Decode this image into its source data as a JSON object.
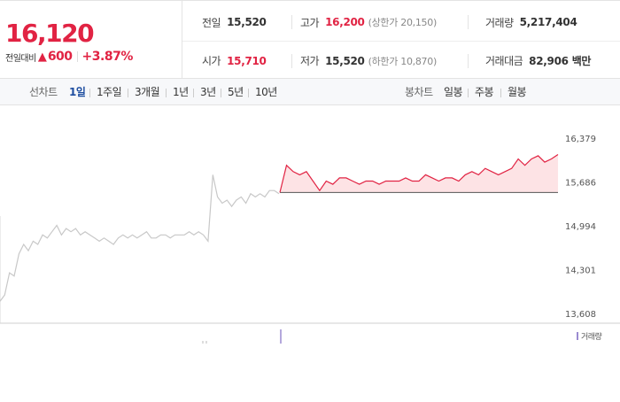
{
  "quote": {
    "price": "16,120",
    "change_label": "전일대비",
    "change_amount": "600",
    "change_pct": "+3.87%",
    "prev_close_label": "전일",
    "prev_close": "15,520",
    "high_label": "고가",
    "high": "16,200",
    "upper_limit": "(상한가 20,150)",
    "volume_label": "거래량",
    "volume": "5,217,404",
    "open_label": "시가",
    "open": "15,710",
    "low_label": "저가",
    "low": "15,520",
    "lower_limit": "(하한가 10,870)",
    "amount_label": "거래대금",
    "amount": "82,906",
    "amount_unit": "백만"
  },
  "toolbar": {
    "line_label": "선차트",
    "periods": [
      "1일",
      "1주일",
      "3개월",
      "1년",
      "3년",
      "5년",
      "10년"
    ],
    "candle_label": "봉차트",
    "candles": [
      "일봉",
      "주봉",
      "월봉"
    ]
  },
  "colors": {
    "up": "#e12343",
    "history_line": "#c8c8c8",
    "today_fill": "#fde3e5",
    "baseline": "#555555",
    "volume": "#9a8ad0"
  },
  "volume_legend": "거래량",
  "chart_data": {
    "type": "line",
    "title": "",
    "xlabel": "",
    "ylabel": "",
    "y_ticks": [
      "16,379",
      "15,686",
      "14,994",
      "14,301",
      "13,608"
    ],
    "ylim": [
      13608,
      16379
    ],
    "baseline": 15520,
    "grid": false,
    "series": [
      {
        "values": [
          13800,
          13900,
          14250,
          14200,
          14550,
          14700,
          14600,
          14750,
          14700,
          14850,
          14800,
          14900,
          15000,
          14850,
          14950,
          14900,
          14950,
          14850,
          14900,
          14850,
          14800,
          14750,
          14800,
          14750,
          14700,
          14800,
          14850,
          14800,
          14850,
          14800,
          14850,
          14900,
          14800,
          14800,
          14850,
          14850,
          14800,
          14850,
          14850,
          14850,
          14900,
          14850,
          14900,
          14850,
          14750,
          15800,
          15450,
          15350,
          15400,
          15300,
          15400,
          15450,
          15350,
          15500,
          15450,
          15500,
          15450,
          15550,
          15550,
          15500
        ]
      },
      {
        "values": [
          15520,
          15950,
          15850,
          15800,
          15850,
          15700,
          15550,
          15700,
          15650,
          15750,
          15750,
          15700,
          15650,
          15700,
          15700,
          15650,
          15700,
          15700,
          15700,
          15750,
          15700,
          15700,
          15800,
          15750,
          15700,
          15750,
          15750,
          15700,
          15800,
          15850,
          15800,
          15900,
          15850,
          15800,
          15850,
          15900,
          16050,
          15950,
          16050,
          16100,
          16000,
          16050,
          16120
        ]
      }
    ]
  }
}
